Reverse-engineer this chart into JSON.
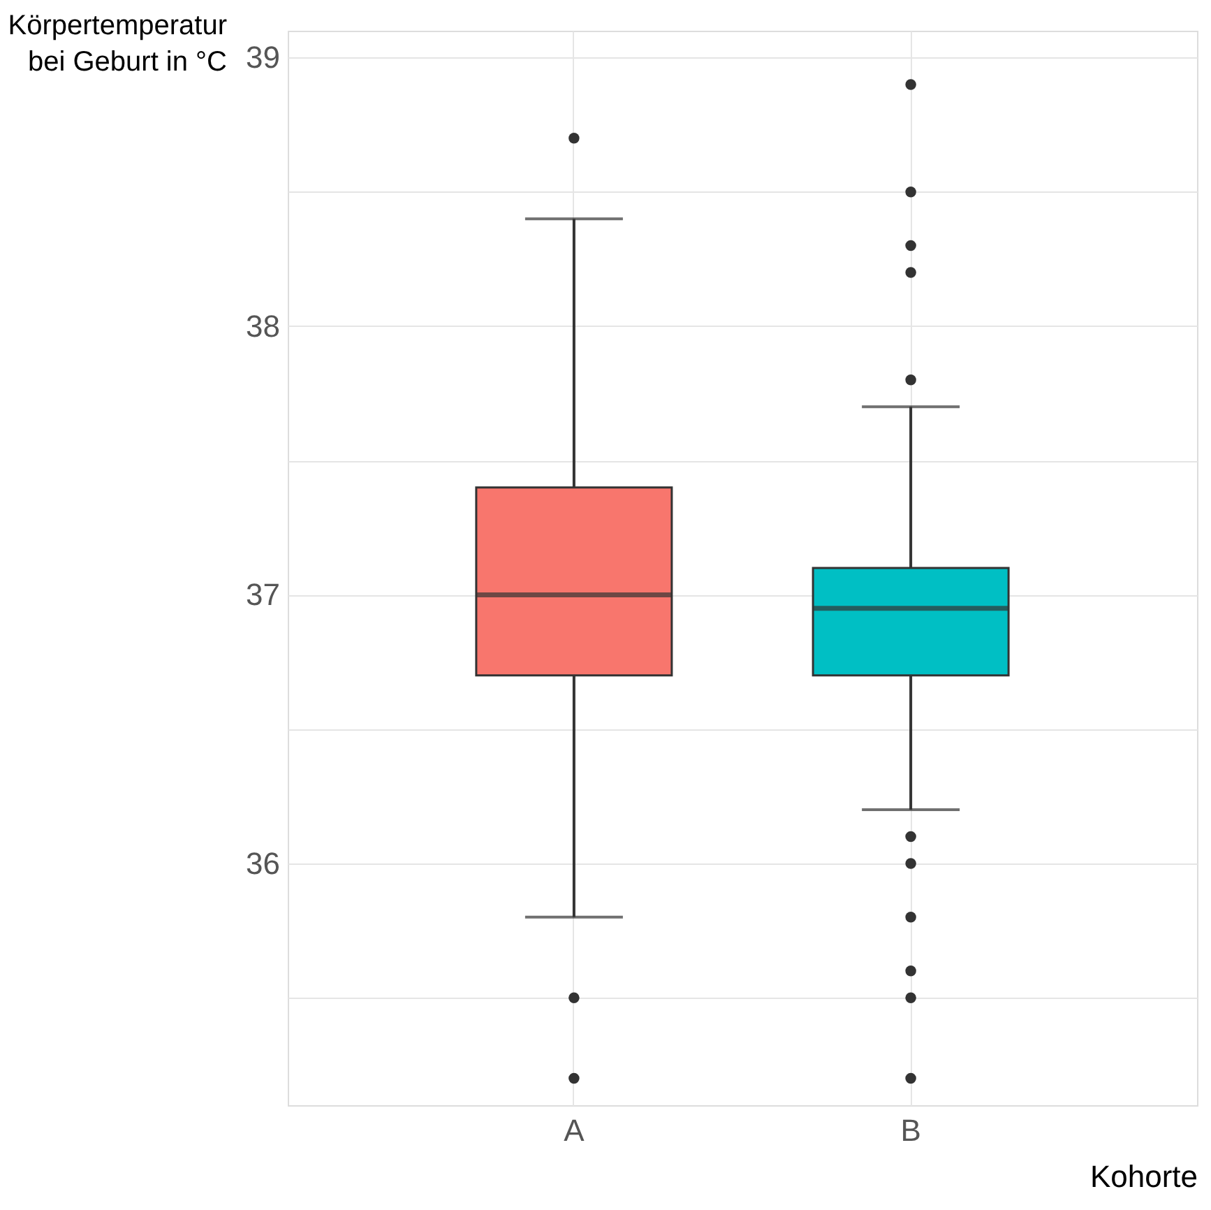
{
  "chart_data": {
    "type": "box",
    "xlabel": "Kohorte",
    "ylabel": "Körpertemperatur\nbei Geburt in °C",
    "categories": [
      "A",
      "B"
    ],
    "colors": [
      "#f8766d",
      "#00bfc4"
    ],
    "boxes": [
      {
        "low": 35.8,
        "q1": 36.7,
        "median": 37.0,
        "q3": 37.4,
        "high": 38.4,
        "outliers": [
          38.7,
          35.5,
          35.2
        ]
      },
      {
        "low": 36.2,
        "q1": 36.7,
        "median": 36.95,
        "q3": 37.1,
        "high": 37.7,
        "outliers": [
          38.9,
          38.5,
          38.3,
          38.2,
          37.8,
          36.1,
          36.0,
          35.8,
          35.6,
          35.5,
          35.2
        ]
      }
    ],
    "ylim": [
      35.1,
      39.1
    ],
    "yticks": [
      {
        "value": 35.5,
        "label": null
      },
      36,
      {
        "value": 36.5,
        "label": null
      },
      37,
      {
        "value": 37.5,
        "label": null
      },
      38,
      {
        "value": 38.5,
        "label": null
      },
      39
    ],
    "grid": true
  }
}
